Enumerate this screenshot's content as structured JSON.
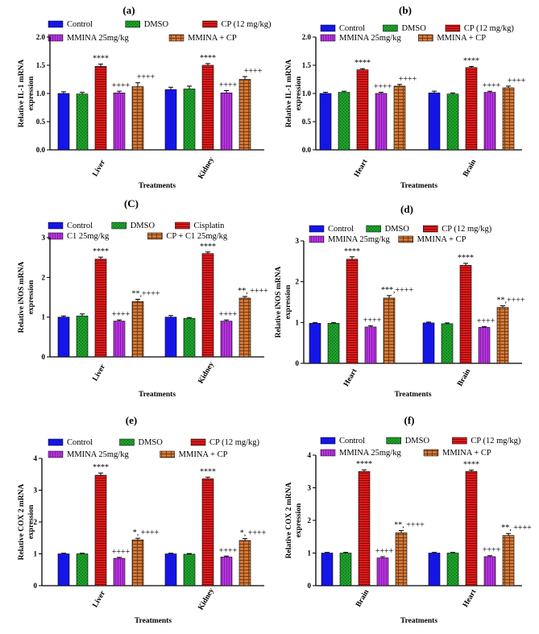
{
  "colors": {
    "Control": "#1515e6",
    "DMSO": "#1d9e2a",
    "CP": "#e01919",
    "MMINA": "#b535dc",
    "Combo": "#d07a3a"
  },
  "chart_data": [
    {
      "panel": "(a)",
      "type": "bar",
      "title": "(a)",
      "ylabel": "Relative IL-1 mRNA expression",
      "xlabel": "Treatments",
      "ylim": [
        0,
        2.0
      ],
      "yticks": [
        "0.0",
        "0.5",
        "1.0",
        "1.5",
        "2.0"
      ],
      "ytick_values": [
        0,
        0.5,
        1,
        1.5,
        2
      ],
      "legend": [
        "Control",
        "DMSO",
        "CP (12 mg/kg)",
        "MMINA 25mg/kg",
        "MMINA + CP"
      ],
      "categories": [
        "Liver",
        "Kidney"
      ],
      "series": [
        {
          "name": "Control",
          "key": "Control",
          "values": [
            1.0,
            1.07
          ],
          "errors": [
            0.03,
            0.04
          ]
        },
        {
          "name": "DMSO",
          "key": "DMSO",
          "values": [
            0.99,
            1.08
          ],
          "errors": [
            0.03,
            0.05
          ]
        },
        {
          "name": "CP (12 mg/kg)",
          "key": "CP",
          "values": [
            1.48,
            1.5
          ],
          "errors": [
            0.04,
            0.03
          ]
        },
        {
          "name": "MMINA 25mg/kg",
          "key": "MMINA",
          "values": [
            1.01,
            1.01
          ],
          "errors": [
            0.03,
            0.04
          ]
        },
        {
          "name": "MMINA + CP",
          "key": "Combo",
          "values": [
            1.12,
            1.25
          ],
          "errors": [
            0.07,
            0.05
          ]
        }
      ],
      "annotations": [
        {
          "cat": 0,
          "bar": 2,
          "text": "****"
        },
        {
          "cat": 0,
          "bar": 3,
          "text": "++++"
        },
        {
          "cat": 0,
          "bar": 4,
          "text": "++++"
        },
        {
          "cat": 1,
          "bar": 2,
          "text": "****"
        },
        {
          "cat": 1,
          "bar": 3,
          "text": "++++"
        },
        {
          "cat": 1,
          "bar": 4,
          "text": "++++"
        }
      ]
    },
    {
      "panel": "(b)",
      "type": "bar",
      "title": "(b)",
      "ylabel": "Relative IL-1 mRNA expression",
      "xlabel": "Treatments",
      "ylim": [
        0,
        2.0
      ],
      "yticks": [
        "0.0",
        "0.5",
        "1.0",
        "1.5",
        "2.0"
      ],
      "ytick_values": [
        0,
        0.5,
        1,
        1.5,
        2
      ],
      "legend": [
        "Control",
        "DMSO",
        "CP (12 mg/kg)",
        "MMINA 25mg/kg",
        "MMINA + CP"
      ],
      "categories": [
        "Heart",
        "Brain"
      ],
      "series": [
        {
          "name": "Control",
          "key": "Control",
          "values": [
            1.0,
            1.01
          ],
          "errors": [
            0.02,
            0.03
          ]
        },
        {
          "name": "DMSO",
          "key": "DMSO",
          "values": [
            1.02,
            0.99
          ],
          "errors": [
            0.02,
            0.02
          ]
        },
        {
          "name": "CP (12 mg/kg)",
          "key": "CP",
          "values": [
            1.42,
            1.46
          ],
          "errors": [
            0.02,
            0.02
          ]
        },
        {
          "name": "MMINA 25mg/kg",
          "key": "MMINA",
          "values": [
            1.0,
            1.02
          ],
          "errors": [
            0.02,
            0.02
          ]
        },
        {
          "name": "MMINA + CP",
          "key": "Combo",
          "values": [
            1.13,
            1.1
          ],
          "errors": [
            0.03,
            0.03
          ]
        }
      ],
      "annotations": [
        {
          "cat": 0,
          "bar": 2,
          "text": "****"
        },
        {
          "cat": 0,
          "bar": 3,
          "text": "++++"
        },
        {
          "cat": 0,
          "bar": 4,
          "text": "++++"
        },
        {
          "cat": 1,
          "bar": 2,
          "text": "****"
        },
        {
          "cat": 1,
          "bar": 3,
          "text": "++++"
        },
        {
          "cat": 1,
          "bar": 4,
          "text": "++++"
        }
      ]
    },
    {
      "panel": "(C)",
      "type": "bar",
      "title": "(C)",
      "ylabel": "Relative iNOS mRNA expression",
      "xlabel": "Treatments",
      "ylim": [
        0,
        3
      ],
      "yticks": [
        "0",
        "1",
        "2",
        "3"
      ],
      "ytick_values": [
        0,
        1,
        2,
        3
      ],
      "legend": [
        "Control",
        "DMSO",
        "Cisplatin",
        "C1 25mg/kg",
        "CP + C1 25mg/kg"
      ],
      "categories": [
        "Liver",
        "Kidney"
      ],
      "series": [
        {
          "name": "Control",
          "key": "Control",
          "values": [
            1.0,
            1.0
          ],
          "errors": [
            0.03,
            0.04
          ]
        },
        {
          "name": "DMSO",
          "key": "DMSO",
          "values": [
            1.03,
            0.97
          ],
          "errors": [
            0.05,
            0.02
          ]
        },
        {
          "name": "Cisplatin",
          "key": "CP",
          "values": [
            2.46,
            2.6
          ],
          "errors": [
            0.05,
            0.04
          ]
        },
        {
          "name": "C1 25mg/kg",
          "key": "MMINA",
          "values": [
            0.9,
            0.9
          ],
          "errors": [
            0.03,
            0.03
          ]
        },
        {
          "name": "CP + C1 25mg/kg",
          "key": "Combo",
          "values": [
            1.39,
            1.48
          ],
          "errors": [
            0.06,
            0.04
          ]
        }
      ],
      "annotations": [
        {
          "cat": 0,
          "bar": 2,
          "text": "****"
        },
        {
          "cat": 0,
          "bar": 3,
          "text": "++++"
        },
        {
          "cat": 0,
          "bar": 4,
          "text": "**,++++"
        },
        {
          "cat": 1,
          "bar": 2,
          "text": "****"
        },
        {
          "cat": 1,
          "bar": 3,
          "text": "++++"
        },
        {
          "cat": 1,
          "bar": 4,
          "text": "**, ++++"
        }
      ]
    },
    {
      "panel": "(d)",
      "type": "bar",
      "title": "(d)",
      "ylabel": "Relative iNOS mRNA expression",
      "xlabel": "Treatments",
      "ylim": [
        0,
        3
      ],
      "yticks": [
        "0",
        "1",
        "2",
        "3"
      ],
      "ytick_values": [
        0,
        1,
        2,
        3
      ],
      "legend": [
        "Control",
        "DMSO",
        "CP (12 mg/kg)",
        "MMINA 25mg/kg",
        "MMINA + CP"
      ],
      "categories": [
        "Heart",
        "Brain"
      ],
      "series": [
        {
          "name": "Control",
          "key": "Control",
          "values": [
            0.98,
            0.99
          ],
          "errors": [
            0.02,
            0.02
          ]
        },
        {
          "name": "DMSO",
          "key": "DMSO",
          "values": [
            0.98,
            0.97
          ],
          "errors": [
            0.02,
            0.02
          ]
        },
        {
          "name": "CP (12 mg/kg)",
          "key": "CP",
          "values": [
            2.55,
            2.4
          ],
          "errors": [
            0.06,
            0.05
          ]
        },
        {
          "name": "MMINA 25mg/kg",
          "key": "MMINA",
          "values": [
            0.89,
            0.88
          ],
          "errors": [
            0.03,
            0.02
          ]
        },
        {
          "name": "MMINA + CP",
          "key": "Combo",
          "values": [
            1.6,
            1.37
          ],
          "errors": [
            0.06,
            0.04
          ]
        }
      ],
      "annotations": [
        {
          "cat": 0,
          "bar": 2,
          "text": "****"
        },
        {
          "cat": 0,
          "bar": 3,
          "text": "++++"
        },
        {
          "cat": 0,
          "bar": 4,
          "text": "***,++++"
        },
        {
          "cat": 1,
          "bar": 2,
          "text": "****"
        },
        {
          "cat": 1,
          "bar": 3,
          "text": "++++"
        },
        {
          "cat": 1,
          "bar": 4,
          "text": "**,++++"
        }
      ]
    },
    {
      "panel": "(e)",
      "type": "bar",
      "title": "(e)",
      "ylabel": "Relative COX 2 mRNA expression",
      "xlabel": "Treatments",
      "ylim": [
        0,
        4
      ],
      "yticks": [
        "0",
        "1",
        "2",
        "3",
        "4"
      ],
      "ytick_values": [
        0,
        1,
        2,
        3,
        4
      ],
      "legend": [
        "Control",
        "DMSO",
        "CP (12 mg/kg)",
        "MMINA 25mg/kg",
        "MMINA + CP"
      ],
      "categories": [
        "Liver",
        "Kidney"
      ],
      "series": [
        {
          "name": "Control",
          "key": "Control",
          "values": [
            1.0,
            1.0
          ],
          "errors": [
            0.02,
            0.02
          ]
        },
        {
          "name": "DMSO",
          "key": "DMSO",
          "values": [
            1.0,
            0.99
          ],
          "errors": [
            0.02,
            0.02
          ]
        },
        {
          "name": "CP (12 mg/kg)",
          "key": "CP",
          "values": [
            3.47,
            3.36
          ],
          "errors": [
            0.07,
            0.05
          ]
        },
        {
          "name": "MMINA 25mg/kg",
          "key": "MMINA",
          "values": [
            0.86,
            0.9
          ],
          "errors": [
            0.03,
            0.03
          ]
        },
        {
          "name": "MMINA + CP",
          "key": "Combo",
          "values": [
            1.44,
            1.42
          ],
          "errors": [
            0.05,
            0.06
          ]
        }
      ],
      "annotations": [
        {
          "cat": 0,
          "bar": 2,
          "text": "****"
        },
        {
          "cat": 0,
          "bar": 3,
          "text": "++++"
        },
        {
          "cat": 0,
          "bar": 4,
          "text": "*, ++++"
        },
        {
          "cat": 1,
          "bar": 2,
          "text": "****"
        },
        {
          "cat": 1,
          "bar": 3,
          "text": "++++"
        },
        {
          "cat": 1,
          "bar": 4,
          "text": "*, ++++"
        }
      ]
    },
    {
      "panel": "(f)",
      "type": "bar",
      "title": "(f)",
      "ylabel": "Relative COX 2 mRNA expression",
      "xlabel": "Treatments",
      "ylim": [
        0,
        4
      ],
      "yticks": [
        "0",
        "1",
        "2",
        "3",
        "4"
      ],
      "ytick_values": [
        0,
        1,
        2,
        3,
        4
      ],
      "legend": [
        "Control",
        "DMSO",
        "CP (12 mg/kg)",
        "MMINA 25mg/kg",
        "MMINA + CP"
      ],
      "categories": [
        "Brain",
        "Heart"
      ],
      "series": [
        {
          "name": "Control",
          "key": "Control",
          "values": [
            1.0,
            1.0
          ],
          "errors": [
            0.02,
            0.02
          ]
        },
        {
          "name": "DMSO",
          "key": "DMSO",
          "values": [
            1.0,
            1.0
          ],
          "errors": [
            0.02,
            0.02
          ]
        },
        {
          "name": "CP (12 mg/kg)",
          "key": "CP",
          "values": [
            3.5,
            3.5
          ],
          "errors": [
            0.05,
            0.04
          ]
        },
        {
          "name": "MMINA 25mg/kg",
          "key": "MMINA",
          "values": [
            0.85,
            0.89
          ],
          "errors": [
            0.04,
            0.03
          ]
        },
        {
          "name": "MMINA + CP",
          "key": "Combo",
          "values": [
            1.62,
            1.54
          ],
          "errors": [
            0.07,
            0.06
          ]
        }
      ],
      "annotations": [
        {
          "cat": 0,
          "bar": 2,
          "text": "****"
        },
        {
          "cat": 0,
          "bar": 3,
          "text": "++++"
        },
        {
          "cat": 0,
          "bar": 4,
          "text": "**, ++++"
        },
        {
          "cat": 1,
          "bar": 2,
          "text": "****"
        },
        {
          "cat": 1,
          "bar": 3,
          "text": "++++"
        },
        {
          "cat": 1,
          "bar": 4,
          "text": "**, ++++"
        }
      ]
    }
  ]
}
